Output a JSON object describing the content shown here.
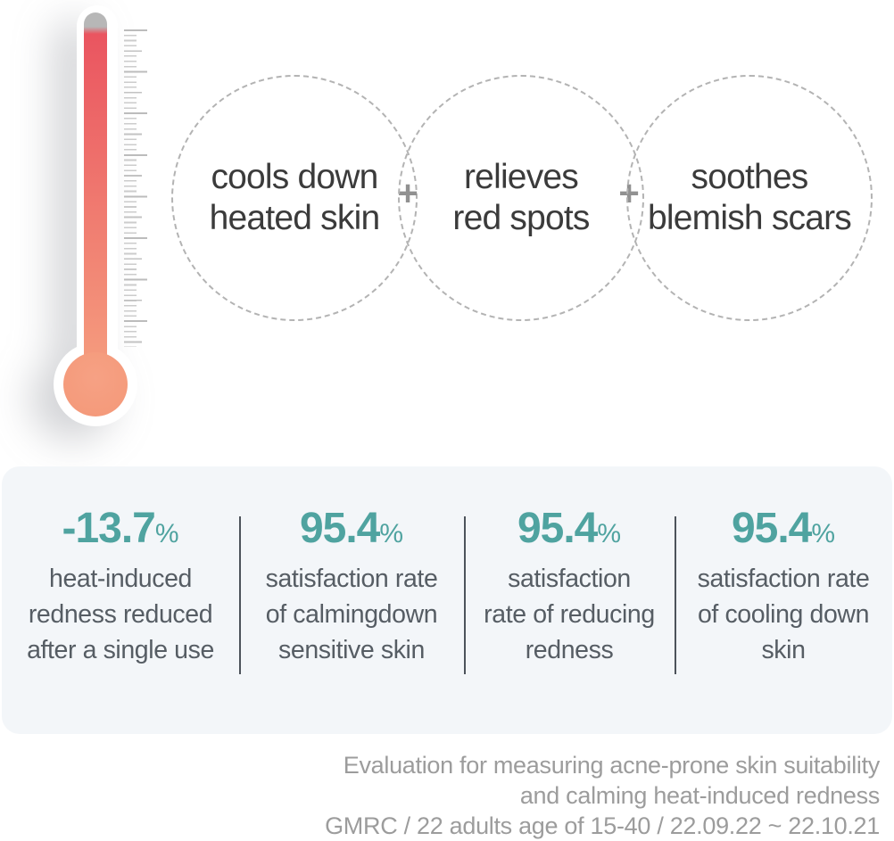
{
  "benefits": {
    "plus_label": "+",
    "items": [
      {
        "line1": "cools down",
        "line2": "heated skin"
      },
      {
        "line1": "relieves",
        "line2": "red spots"
      },
      {
        "line1": "soothes",
        "line2": "blemish scars"
      }
    ]
  },
  "stats": {
    "items": [
      {
        "value": "-13.7",
        "unit": "%",
        "lines": [
          "heat-induced",
          "redness reduced",
          "after a single use"
        ]
      },
      {
        "value": "95.4",
        "unit": "%",
        "lines": [
          "satisfaction rate",
          "of calmingdown",
          "sensitive skin"
        ]
      },
      {
        "value": "95.4",
        "unit": "%",
        "lines": [
          "satisfaction",
          "rate of reducing",
          "redness"
        ]
      },
      {
        "value": "95.4",
        "unit": "%",
        "lines": [
          "satisfaction rate",
          "of cooling down",
          "skin"
        ]
      }
    ]
  },
  "footnote": {
    "lines": [
      "Evaluation for measuring acne-prone skin suitability",
      "and calming heat-induced redness",
      "GMRC / 22 adults age of 15-40 / 22.09.22 ~ 22.10.21"
    ]
  },
  "colors": {
    "accent_teal": "#4fa3a0",
    "thermo_red_top": "#ea5560",
    "thermo_salmon_bottom": "#f59c7e",
    "panel_background": "#f3f6f9",
    "stat_text": "#565d64",
    "footnote_text": "#9c9c9c"
  }
}
